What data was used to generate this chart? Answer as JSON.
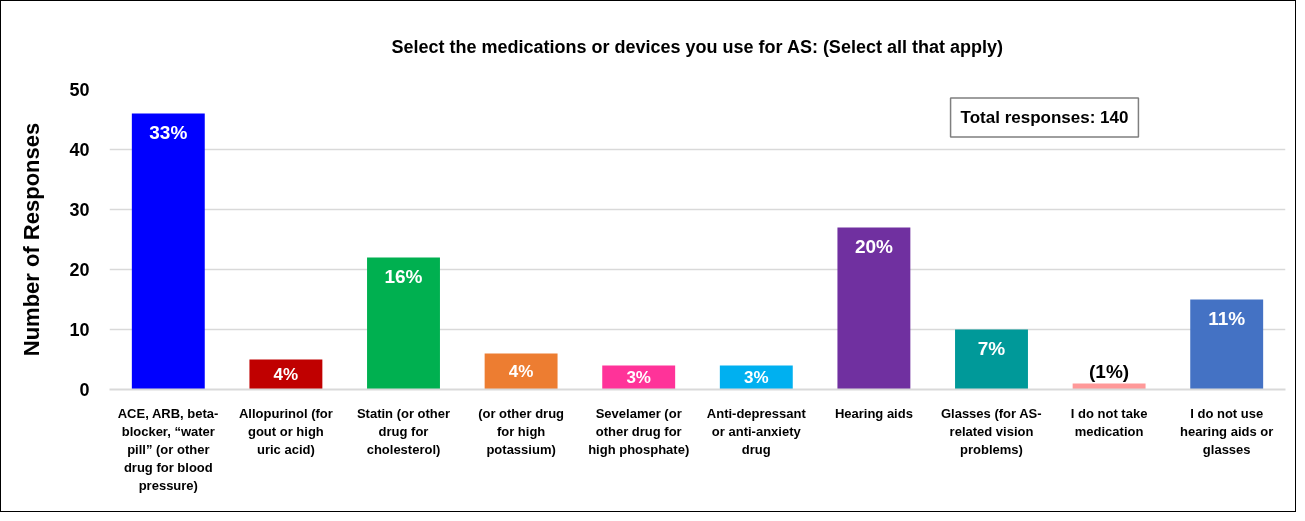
{
  "chart_data": {
    "type": "bar",
    "title": "Select the medications or devices you use for AS: (Select all that apply)",
    "ylabel": "Number of Responses",
    "categories": [
      "ACE, ARB, beta-blocker, “water pill” (or other drug for blood pressure)",
      "Allopurinol (for gout or high uric acid)",
      "Statin (or other drug for cholesterol)",
      "(or other drug for high potassium)",
      "Sevelamer (or other drug for high phosphate)",
      "Anti-depressant or anti-anxiety drug",
      "Hearing aids",
      "Glasses (for AS-related vision problems)",
      "I do not take medication",
      "I do not use hearing aids or glasses"
    ],
    "values": [
      46,
      5,
      22,
      6,
      4,
      4,
      27,
      10,
      1,
      15
    ],
    "colors": [
      "#0000ff",
      "#c00000",
      "#00b050",
      "#ed7d31",
      "#ff3399",
      "#00b0f0",
      "#7030a0",
      "#009999",
      "#ff9999",
      "#4472c4"
    ],
    "ylim": [
      0,
      50
    ],
    "yticks": [
      0,
      10,
      20,
      30,
      40,
      50
    ],
    "grid": "y",
    "annotations": [
      "Total responses: 140",
      {
        "text": "33%",
        "x": "ACE, ARB, beta-blocker, “water pill” (or other drug for blood pressure)",
        "y": 46
      },
      {
        "text": "4%",
        "x": "Allopurinol (for gout or high uric acid)",
        "y": 5
      },
      {
        "text": "16%",
        "x": "Statin (or other drug for cholesterol)",
        "y": 22
      },
      {
        "text": "4%",
        "x": "(or other drug for high potassium)",
        "y": 6
      },
      {
        "text": "3%",
        "x": "Sevelamer (or other drug for high phosphate)",
        "y": 4
      },
      {
        "text": "3%",
        "x": "Anti-depressant or anti-anxiety drug",
        "y": 4
      },
      {
        "text": "20%",
        "x": "Hearing aids",
        "y": 27
      },
      {
        "text": "7%",
        "x": "Glasses (for AS-related vision problems)",
        "y": 10
      },
      {
        "text": "(1%)",
        "x": "I do not take medication",
        "y": 1
      },
      {
        "text": "11%",
        "x": "I do not use hearing aids or glasses",
        "y": 15
      }
    ]
  }
}
